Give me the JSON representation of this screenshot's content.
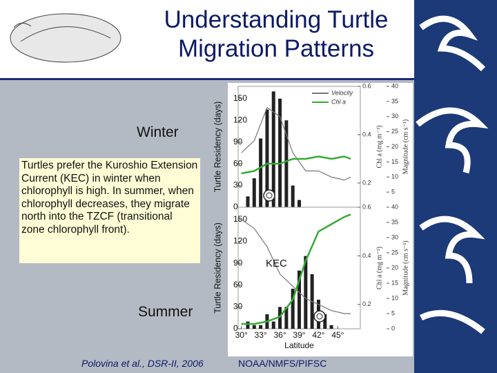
{
  "slide": {
    "title": "Understanding Turtle Migration Patterns",
    "winter_label": "Winter",
    "summer_label": "Summer",
    "description": "Turtles prefer the Kuroshio Extension Current (KEC) in winter when chlorophyll is high. In summer, when chlorophyll decreases, they migrate north into the TZCF (transitional zone chlorophyll front).",
    "citation": "Polovina et al., DSR-II, 2006",
    "credit": "NOAA/NMFS/PIFSC"
  },
  "chart_data": [
    {
      "type": "bar",
      "y_label": "Turtle Residency (days)",
      "y2_label": "Chl a (mg m⁻³)",
      "y3_label": "Magnitude (cm s⁻¹)",
      "x": [
        31,
        32,
        33,
        34,
        35,
        36,
        37,
        38,
        39
      ],
      "values": [
        15,
        40,
        95,
        135,
        160,
        150,
        120,
        30,
        10
      ],
      "color": "#222222",
      "xlim": [
        29.5,
        48.5
      ],
      "ylim": [
        0,
        167
      ],
      "yticks": [
        0,
        30,
        60,
        90,
        120,
        150
      ],
      "y2lim": [
        0.1,
        0.6
      ],
      "y2ticks": [
        0.2,
        0.4,
        0.6
      ],
      "y3lim": [
        0,
        40
      ],
      "y3ticks": [
        5,
        10,
        15,
        20,
        25,
        30,
        35,
        40
      ],
      "series": [
        {
          "name": "Velocity",
          "color": "#777777",
          "axis": "y3",
          "x": [
            30,
            32,
            34,
            36,
            38,
            40,
            42,
            44,
            46,
            47
          ],
          "values": [
            18,
            22,
            33,
            30,
            18,
            12,
            12,
            10,
            9,
            10
          ]
        },
        {
          "name": "Chl a",
          "color": "#33aa33",
          "axis": "y2",
          "x": [
            30,
            32,
            34,
            36,
            38,
            40,
            42,
            44,
            46,
            47
          ],
          "values": [
            0.24,
            0.25,
            0.28,
            0.28,
            0.3,
            0.3,
            0.31,
            0.3,
            0.31,
            0.3
          ]
        }
      ]
    },
    {
      "type": "bar",
      "y_label": "Turtle Residency (days)",
      "y2_label": "Chl a (mg m⁻³)",
      "y3_label": "Magnitude (cm s⁻¹)",
      "x_label": "Latitude",
      "annotation": "KEC",
      "x": [
        31,
        32,
        33,
        34,
        35,
        36,
        37,
        38,
        39,
        40,
        41,
        42,
        43,
        44
      ],
      "values": [
        10,
        5,
        5,
        20,
        10,
        30,
        30,
        55,
        80,
        100,
        75,
        40,
        20,
        5
      ],
      "color": "#222222",
      "xlim": [
        29.5,
        48.5
      ],
      "xticks": [
        {
          "value": 30,
          "label": "30°"
        },
        {
          "value": 33,
          "label": "33°"
        },
        {
          "value": 36,
          "label": "36°"
        },
        {
          "value": 39,
          "label": "39°"
        },
        {
          "value": 42,
          "label": "42°"
        },
        {
          "value": 45,
          "label": "45°"
        }
      ],
      "ylim": [
        0,
        167
      ],
      "yticks": [
        0,
        30,
        60,
        90,
        120,
        150
      ],
      "y2lim": [
        0.1,
        0.6
      ],
      "y2ticks": [
        0.2,
        0.4,
        0.6
      ],
      "y3lim": [
        0,
        40
      ],
      "y3ticks": [
        0,
        5,
        10,
        15,
        20,
        25,
        30,
        35,
        40
      ],
      "series": [
        {
          "color": "#777777",
          "axis": "y3",
          "x": [
            30,
            32,
            34,
            36,
            38,
            40,
            42,
            44,
            46,
            47
          ],
          "values": [
            36,
            33,
            27,
            18,
            14,
            10,
            8,
            6,
            5,
            5
          ]
        },
        {
          "color": "#33aa33",
          "axis": "y2",
          "x": [
            30,
            32,
            34,
            36,
            38,
            40,
            42,
            44,
            46,
            47
          ],
          "values": [
            0.12,
            0.12,
            0.13,
            0.15,
            0.22,
            0.38,
            0.5,
            0.53,
            0.56,
            0.57
          ]
        }
      ]
    }
  ]
}
